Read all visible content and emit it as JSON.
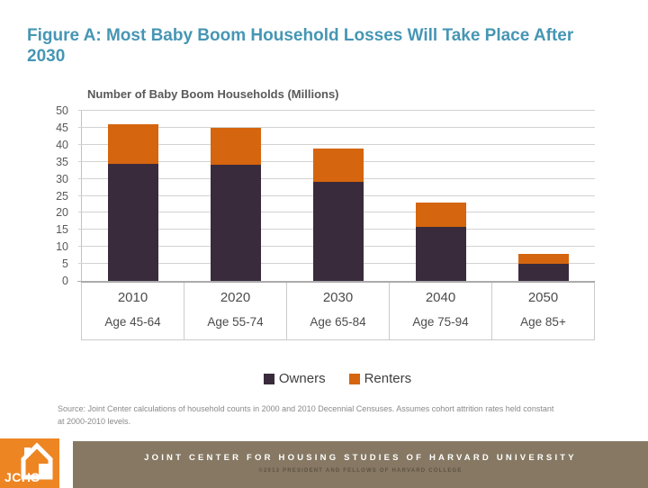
{
  "slide": {
    "title": "Figure A: Most Baby Boom Household Losses Will Take Place After 2030",
    "source_note": "Source: Joint Center calculations of household counts in 2000 and 2010 Decennial Censuses. Assumes cohort attrition rates held constant at 2000-2010 levels.",
    "footer": {
      "logo_text": "JCHS",
      "org_name": "JOINT CENTER FOR HOUSING STUDIES OF HARVARD UNIVERSITY",
      "copyright": "©2013 PRESIDENT AND FELLOWS OF HARVARD COLLEGE"
    }
  },
  "colors": {
    "title_teal": "#4696B4",
    "owners_dark_purple": "#392B3C",
    "renters_orange": "#D5650E",
    "logo_orange": "#EE8523",
    "footer_taupe": "#867863",
    "axis_text_gray": "#595959"
  },
  "chart_data": {
    "type": "bar",
    "stacked": true,
    "title": "Number of Baby Boom Households (Millions)",
    "categories": [
      "2010",
      "2020",
      "2030",
      "2040",
      "2050"
    ],
    "category_sublabels": [
      "Age 45-64",
      "Age 55-74",
      "Age 65-84",
      "Age 75-94",
      "Age 85+"
    ],
    "series": [
      {
        "name": "Owners",
        "color": "#392B3C",
        "values": [
          34.5,
          34,
          29,
          16,
          5
        ]
      },
      {
        "name": "Renters",
        "color": "#D5650E",
        "values": [
          11.5,
          11,
          10,
          7,
          3
        ]
      }
    ],
    "totals": [
      46,
      45,
      39,
      23,
      8
    ],
    "xlabel": "",
    "ylabel": "",
    "ylim": [
      0,
      50
    ],
    "ytick_interval": 5,
    "grid": true,
    "legend_position": "bottom"
  }
}
